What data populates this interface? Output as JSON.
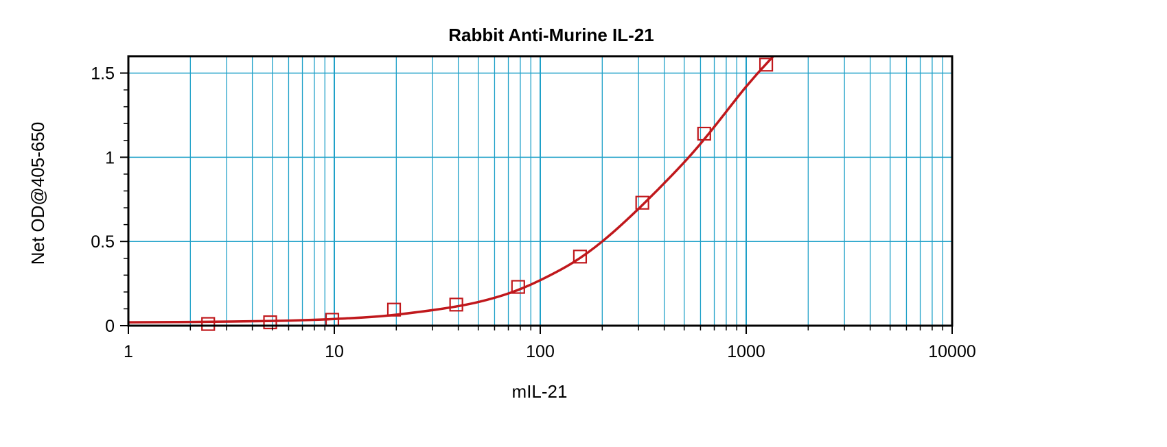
{
  "chart_data": {
    "type": "scatter",
    "title": "Rabbit Anti-Murine IL-21",
    "xlabel": "mIL-21",
    "ylabel": "Net OD@405-650",
    "x_scale": "log",
    "xlim": [
      1,
      10000
    ],
    "ylim": [
      0,
      1.6
    ],
    "x_ticks": [
      1,
      10,
      100,
      1000,
      10000
    ],
    "x_tick_labels": [
      "1",
      "10",
      "100",
      "1000",
      "10000"
    ],
    "y_ticks": [
      0,
      0.5,
      1,
      1.5
    ],
    "y_tick_labels": [
      "0",
      "0.5",
      "1",
      "1.5"
    ],
    "grid": true,
    "colors": {
      "grid": "#1ea0c8",
      "series": "#c0181c",
      "axis": "#000000"
    },
    "series": [
      {
        "points": [
          [
            2.44,
            0.01
          ],
          [
            4.88,
            0.02
          ],
          [
            9.77,
            0.035
          ],
          [
            19.5,
            0.095
          ],
          [
            39.1,
            0.125
          ],
          [
            78.1,
            0.23
          ],
          [
            156,
            0.41
          ],
          [
            313,
            0.73
          ],
          [
            625,
            1.14
          ],
          [
            1250,
            1.55
          ]
        ],
        "fit_curve": [
          [
            1,
            0.02
          ],
          [
            2,
            0.022
          ],
          [
            5,
            0.028
          ],
          [
            10,
            0.04
          ],
          [
            20,
            0.065
          ],
          [
            50,
            0.14
          ],
          [
            100,
            0.27
          ],
          [
            200,
            0.5
          ],
          [
            500,
            0.97
          ],
          [
            1000,
            1.42
          ],
          [
            1400,
            1.62
          ]
        ]
      }
    ]
  }
}
